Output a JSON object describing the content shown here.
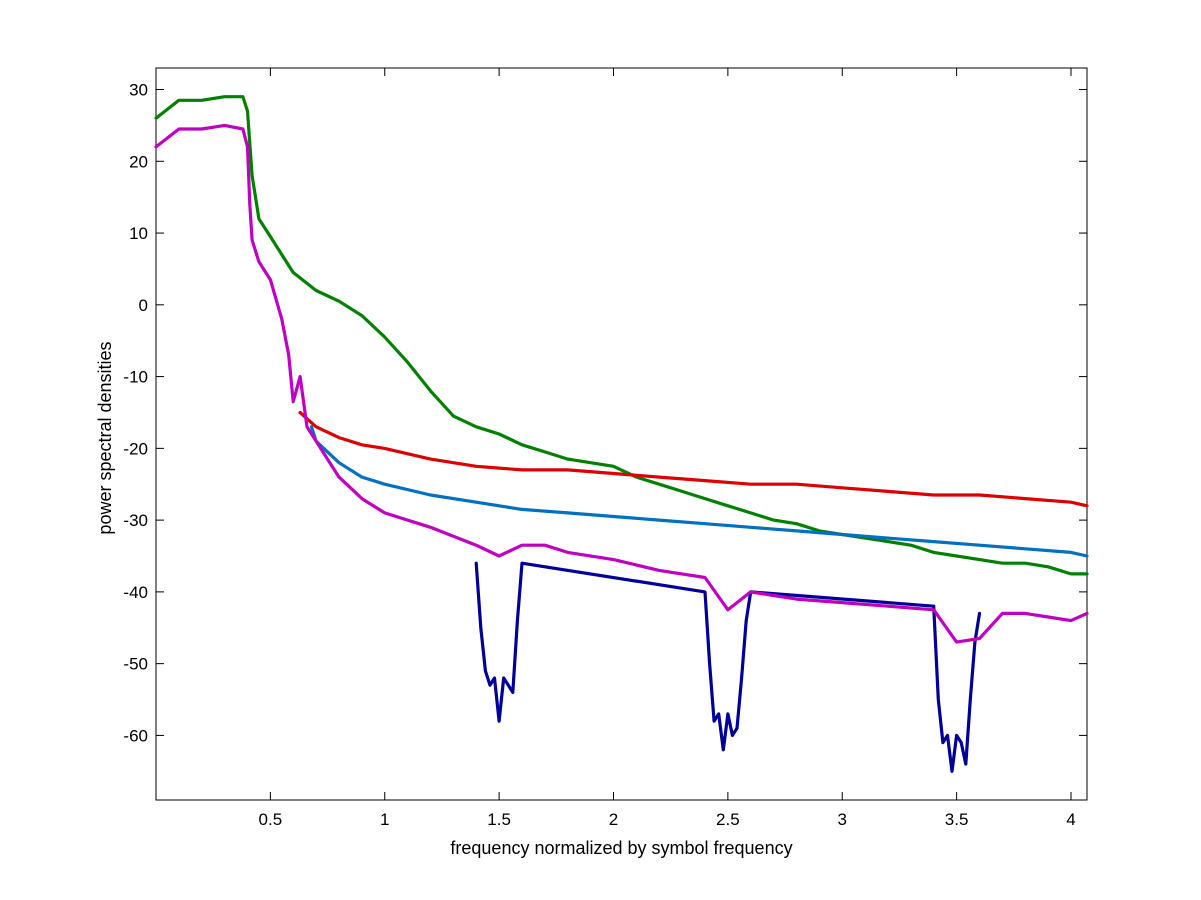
{
  "chart_data": {
    "type": "line",
    "title": "",
    "xlabel": "frequency normalized by symbol frequency",
    "ylabel": "power spectral densities",
    "xlim": [
      0.0,
      4.07
    ],
    "ylim": [
      -69,
      33
    ],
    "xticks": [
      0.5,
      1,
      1.5,
      2,
      2.5,
      3,
      3.5,
      4
    ],
    "xtick_labels": [
      "0.5",
      "1",
      "1.5",
      "2",
      "2.5",
      "3",
      "3.5",
      "4"
    ],
    "yticks": [
      30,
      20,
      10,
      0,
      -10,
      -20,
      -30,
      -40,
      -50,
      -60
    ],
    "ytick_labels": [
      "30",
      "20",
      "10",
      "0",
      "-10",
      "-20",
      "-30",
      "-40",
      "-50",
      "-60"
    ],
    "grid": false,
    "legend": "none",
    "series": [
      {
        "color": "#008000",
        "x": [
          0.0,
          0.1,
          0.2,
          0.3,
          0.38,
          0.4,
          0.42,
          0.45,
          0.5,
          0.55,
          0.6,
          0.7,
          0.8,
          0.9,
          1.0,
          1.1,
          1.2,
          1.3,
          1.4,
          1.5,
          1.6,
          1.7,
          1.8,
          1.9,
          2.0,
          2.1,
          2.2,
          2.3,
          2.4,
          2.5,
          2.6,
          2.7,
          2.8,
          2.9,
          3.0,
          3.1,
          3.2,
          3.3,
          3.4,
          3.5,
          3.6,
          3.7,
          3.8,
          3.9,
          4.0,
          4.07
        ],
        "y": [
          26.0,
          28.5,
          28.5,
          29.0,
          29.0,
          27.0,
          18.0,
          12.0,
          9.5,
          7.0,
          4.5,
          2.0,
          0.5,
          -1.5,
          -4.5,
          -8.0,
          -12.0,
          -15.5,
          -17.0,
          -18.0,
          -19.5,
          -20.5,
          -21.5,
          -22.0,
          -22.5,
          -24.0,
          -25.0,
          -26.0,
          -27.0,
          -28.0,
          -29.0,
          -30.0,
          -30.5,
          -31.5,
          -32.0,
          -32.5,
          -33.0,
          -33.5,
          -34.5,
          -35.0,
          -35.5,
          -36.0,
          -36.0,
          -36.5,
          -37.5,
          -37.5
        ]
      },
      {
        "color": "#dd0000",
        "x": [
          0.63,
          0.7,
          0.8,
          0.9,
          1.0,
          1.2,
          1.4,
          1.6,
          1.8,
          2.0,
          2.2,
          2.4,
          2.6,
          2.8,
          3.0,
          3.2,
          3.4,
          3.6,
          3.8,
          4.0,
          4.07
        ],
        "y": [
          -15.0,
          -17.0,
          -18.5,
          -19.5,
          -20.0,
          -21.5,
          -22.5,
          -23.0,
          -23.0,
          -23.5,
          -24.0,
          -24.5,
          -25.0,
          -25.0,
          -25.5,
          -26.0,
          -26.5,
          -26.5,
          -27.0,
          -27.5,
          -28.0
        ]
      },
      {
        "color": "#0070c0",
        "x": [
          0.68,
          0.7,
          0.8,
          0.9,
          1.0,
          1.2,
          1.4,
          1.6,
          1.8,
          2.0,
          2.2,
          2.4,
          2.6,
          2.8,
          3.0,
          3.2,
          3.4,
          3.6,
          3.8,
          4.0,
          4.07
        ],
        "y": [
          -17.0,
          -19.0,
          -22.0,
          -24.0,
          -25.0,
          -26.5,
          -27.5,
          -28.5,
          -29.0,
          -29.5,
          -30.0,
          -30.5,
          -31.0,
          -31.5,
          -32.0,
          -32.5,
          -33.0,
          -33.5,
          -34.0,
          -34.5,
          -35.0
        ]
      },
      {
        "color": "#000099",
        "x": [
          1.4,
          1.42,
          1.44,
          1.46,
          1.48,
          1.5,
          1.52,
          1.54,
          1.56,
          1.58,
          1.6,
          2.4,
          2.42,
          2.44,
          2.46,
          2.48,
          2.5,
          2.52,
          2.54,
          2.56,
          2.58,
          2.6,
          3.4,
          3.42,
          3.44,
          3.46,
          3.48,
          3.5,
          3.52,
          3.54,
          3.56,
          3.58,
          3.6
        ],
        "y": [
          -36.0,
          -45.0,
          -51.0,
          -53.0,
          -52.0,
          -58.0,
          -52.0,
          -53.0,
          -54.0,
          -44.0,
          -36.0,
          -40.0,
          -50.0,
          -58.0,
          -57.0,
          -62.0,
          -57.0,
          -60.0,
          -59.0,
          -52.0,
          -44.0,
          -40.0,
          -42.0,
          -55.0,
          -61.0,
          -60.0,
          -65.0,
          -60.0,
          -61.0,
          -64.0,
          -55.0,
          -47.0,
          -43.0
        ]
      },
      {
        "color": "#c000c0",
        "x": [
          0.0,
          0.1,
          0.2,
          0.3,
          0.38,
          0.4,
          0.41,
          0.42,
          0.45,
          0.5,
          0.55,
          0.58,
          0.6,
          0.63,
          0.66,
          0.7,
          0.8,
          0.9,
          1.0,
          1.2,
          1.4,
          1.5,
          1.6,
          1.7,
          1.8,
          2.0,
          2.2,
          2.4,
          2.5,
          2.6,
          2.7,
          2.8,
          3.0,
          3.2,
          3.4,
          3.5,
          3.6,
          3.7,
          3.8,
          3.9,
          4.0,
          4.07
        ],
        "y": [
          22.0,
          24.5,
          24.5,
          25.0,
          24.5,
          22.0,
          14.0,
          9.0,
          6.0,
          3.5,
          -2.0,
          -7.0,
          -13.5,
          -10.0,
          -17.0,
          -19.0,
          -24.0,
          -27.0,
          -29.0,
          -31.0,
          -33.5,
          -35.0,
          -33.5,
          -33.5,
          -34.5,
          -35.5,
          -37.0,
          -38.0,
          -42.5,
          -40.0,
          -40.5,
          -41.0,
          -41.5,
          -42.0,
          -42.5,
          -47.0,
          -46.5,
          -43.0,
          -43.0,
          -43.5,
          -44.0,
          -43.0
        ]
      }
    ]
  }
}
